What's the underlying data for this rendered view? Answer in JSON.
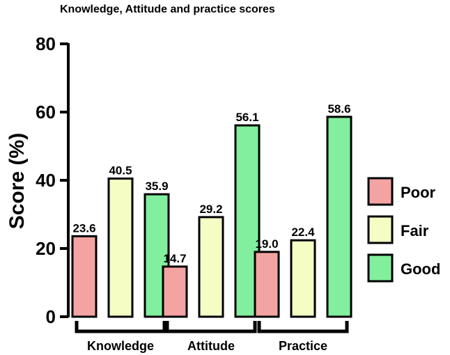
{
  "chart_data": {
    "type": "bar",
    "title": "Knowledge, Attitude and practice scores",
    "xlabel": "",
    "ylabel": "Score (%)",
    "ylim": [
      0,
      80
    ],
    "yticks": [
      "0",
      "20",
      "40",
      "60",
      "80"
    ],
    "categories": [
      "Knowledge",
      "Attitude",
      "Practice"
    ],
    "series": [
      {
        "name": "Poor",
        "color": "#f4a3a3",
        "values": [
          23.6,
          14.7,
          19.0
        ],
        "labels": [
          "23.6",
          "14.7",
          "19.0"
        ]
      },
      {
        "name": "Fair",
        "color": "#f5fdc4",
        "values": [
          40.5,
          29.2,
          22.4
        ],
        "labels": [
          "40.5",
          "29.2",
          "22.4"
        ]
      },
      {
        "name": "Good",
        "color": "#82ef9e",
        "values": [
          35.9,
          56.1,
          58.6
        ],
        "labels": [
          "35.9",
          "56.1",
          "58.6"
        ]
      }
    ],
    "legend_position": "right",
    "grid": false
  }
}
